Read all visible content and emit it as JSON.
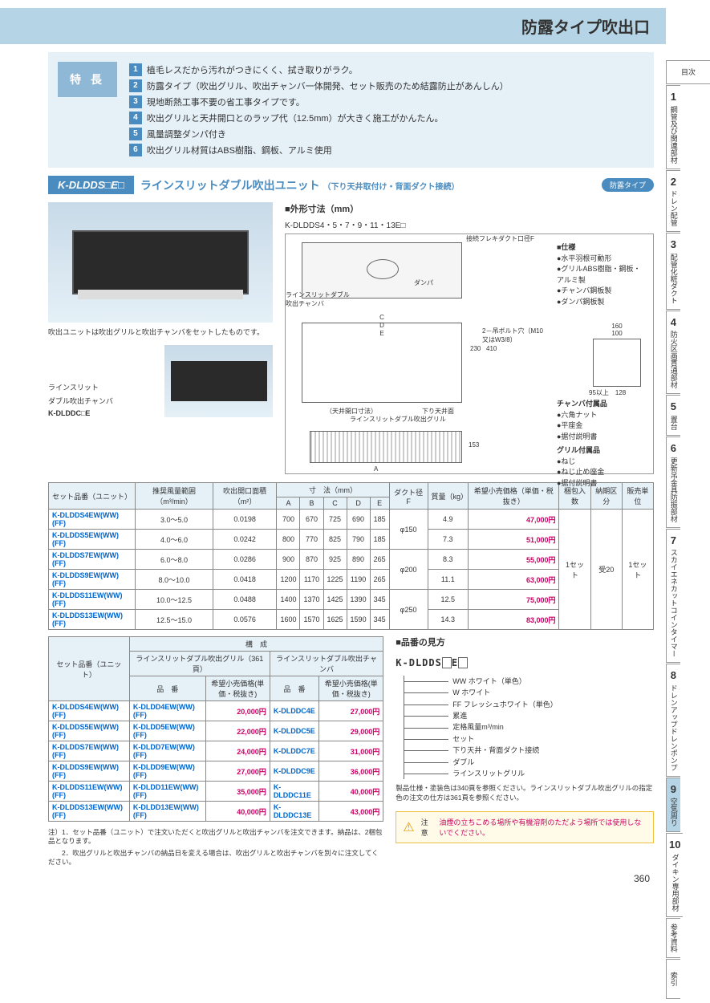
{
  "header_title": "防露タイプ吹出口",
  "page_number": "360",
  "features": {
    "label": "特 長",
    "items": [
      "植毛レスだから汚れがつきにくく、拭き取りがラク。",
      "防露タイプ（吹出グリル、吹出チャンバ一体開発、セット販売のため結露防止があんしん）",
      "現地断熱工事不要の省工事タイプです。",
      "吹出グリルと天井開口とのラップ代（12.5mm）が大きく施工がかんたん。",
      "風量調整ダンパ付き",
      "吹出グリル材質はABS樹脂、鋼板、アルミ使用"
    ]
  },
  "model": {
    "code": "K-DLDDS□E□",
    "title": "ラインスリットダブル吹出ユニット",
    "subtitle": "（下り天井取付け・背面ダクト接続）",
    "badge": "防露タイプ"
  },
  "photo_caption": "吹出ユニットは吹出グリルと吹出チャンバをセットしたものです。",
  "chamber": {
    "label1": "ラインスリット",
    "label2": "ダブル吹出チャンバ",
    "code": "K-DLDDC□E"
  },
  "dimensions": {
    "header": "■外形寸法（mm）",
    "sub": "K-DLDDS4・5・7・9・11・13E□",
    "labels": {
      "duct": "接続フレキダクト口径F",
      "damper": "ダンパ",
      "chamber": "ラインスリットダブル吹出チャンバ",
      "bolt": "2－吊ボルト穴（M10又はW3/8）",
      "ceiling": "（天井開口寸法）",
      "drop": "下り天井面",
      "grill": "ラインスリットダブル吹出グリル"
    }
  },
  "specs": {
    "title": "■仕様",
    "items": [
      "●水平羽根可動形",
      "●グリルABS樹脂・鋼板・アルミ製",
      "●チャンバ鋼板製",
      "●ダンパ鋼板製"
    ],
    "chamber_acc_title": "チャンバ付属品",
    "chamber_acc": [
      "●六角ナット",
      "●平座金",
      "●据付説明書"
    ],
    "grill_acc_title": "グリル付属品",
    "grill_acc": [
      "●ねじ",
      "●ねじ止め座金",
      "●据付説明書"
    ]
  },
  "table1": {
    "headers": {
      "set": "セット品番（ユニット）",
      "flow": "推奨風量範囲（m³/min）",
      "area": "吹出開口面積（m²）",
      "dims": "寸　法（mm）",
      "duct": "ダクト径 F",
      "mass": "質量（kg）",
      "price": "希望小売価格（単価・税抜き）",
      "pack": "梱包入数",
      "delivery": "納期区分",
      "unit": "販売単位"
    },
    "rows": [
      {
        "code": "K-DLDDS4EW(WW)(FF)",
        "flow": "3.0～5.0",
        "area": "0.0198",
        "A": "700",
        "B": "670",
        "C": "725",
        "D": "690",
        "E": "185",
        "duct": "φ150",
        "mass": "4.9",
        "price": "47,000円"
      },
      {
        "code": "K-DLDDS5EW(WW)(FF)",
        "flow": "4.0～6.0",
        "area": "0.0242",
        "A": "800",
        "B": "770",
        "C": "825",
        "D": "790",
        "E": "185",
        "duct": "φ150",
        "mass": "7.3",
        "price": "51,000円"
      },
      {
        "code": "K-DLDDS7EW(WW)(FF)",
        "flow": "6.0～8.0",
        "area": "0.0286",
        "A": "900",
        "B": "870",
        "C": "925",
        "D": "890",
        "E": "265",
        "duct": "φ200",
        "mass": "8.3",
        "price": "55,000円"
      },
      {
        "code": "K-DLDDS9EW(WW)(FF)",
        "flow": "8.0～10.0",
        "area": "0.0418",
        "A": "1200",
        "B": "1170",
        "C": "1225",
        "D": "1190",
        "E": "265",
        "duct": "φ200",
        "mass": "11.1",
        "price": "63,000円"
      },
      {
        "code": "K-DLDDS11EW(WW)(FF)",
        "flow": "10.0～12.5",
        "area": "0.0488",
        "A": "1400",
        "B": "1370",
        "C": "1425",
        "D": "1390",
        "E": "345",
        "duct": "φ250",
        "mass": "12.5",
        "price": "75,000円"
      },
      {
        "code": "K-DLDDS13EW(WW)(FF)",
        "flow": "12.5～15.0",
        "area": "0.0576",
        "A": "1600",
        "B": "1570",
        "C": "1625",
        "D": "1590",
        "E": "345",
        "duct": "φ250",
        "mass": "14.3",
        "price": "83,000円"
      }
    ],
    "pack_val": "1セット",
    "delivery_val": "受20",
    "unit_val": "1セット"
  },
  "table2": {
    "headers": {
      "set": "セット品番（ユニット）",
      "comp": "構　成",
      "grill": "ラインスリットダブル吹出グリル（361頁）",
      "chamber": "ラインスリットダブル吹出チャンバ",
      "code": "品　番",
      "price": "希望小売価格(単価・税抜き)"
    },
    "rows": [
      {
        "set": "K-DLDDS4EW(WW)(FF)",
        "gcode": "K-DLDD4EW(WW)(FF)",
        "gprice": "20,000円",
        "ccode": "K-DLDDC4E",
        "cprice": "27,000円"
      },
      {
        "set": "K-DLDDS5EW(WW)(FF)",
        "gcode": "K-DLDD5EW(WW)(FF)",
        "gprice": "22,000円",
        "ccode": "K-DLDDC5E",
        "cprice": "29,000円"
      },
      {
        "set": "K-DLDDS7EW(WW)(FF)",
        "gcode": "K-DLDD7EW(WW)(FF)",
        "gprice": "24,000円",
        "ccode": "K-DLDDC7E",
        "cprice": "31,000円"
      },
      {
        "set": "K-DLDDS9EW(WW)(FF)",
        "gcode": "K-DLDD9EW(WW)(FF)",
        "gprice": "27,000円",
        "ccode": "K-DLDDC9E",
        "cprice": "36,000円"
      },
      {
        "set": "K-DLDDS11EW(WW)(FF)",
        "gcode": "K-DLDD11EW(WW)(FF)",
        "gprice": "35,000円",
        "ccode": "K-DLDDC11E",
        "cprice": "40,000円"
      },
      {
        "set": "K-DLDDS13EW(WW)(FF)",
        "gcode": "K-DLDD13EW(WW)(FF)",
        "gprice": "40,000円",
        "ccode": "K-DLDDC13E",
        "cprice": "43,000円"
      }
    ]
  },
  "footnotes": [
    "注）1．セット品番（ユニット）で注文いただくと吹出グリルと吹出チャンバを注文できます。納品は、2梱包品となります。",
    "　　2．吹出グリルと吹出チャンバの納品日を変える場合は、吹出グリルと吹出チャンバを別々に注文してください。"
  ],
  "part_number": {
    "title": "■品番の見方",
    "code": "K-DLDDS□E□",
    "items": [
      "WW ホワイト（単色）",
      "W ホワイト",
      "FF フレッシュホワイト（単色）",
      "累進",
      "定格風量m³/min",
      "セット",
      "下り天井・背面ダクト接続",
      "ダブル",
      "ラインスリットグリル"
    ]
  },
  "note_ref": "製品仕様・塗装色は340頁を参照ください。ラインスリットダブル吹出グリルの指定色の注文の仕方は361頁を参照ください。",
  "warning": {
    "label": "注意",
    "text": "油煙の立ちこめる場所や有機溶剤のただよう場所では使用しないでください。"
  },
  "side_tabs": [
    {
      "num": "",
      "label": "目次"
    },
    {
      "num": "1",
      "label": "鋼管及び関連部材"
    },
    {
      "num": "2",
      "label": "ドレン配管"
    },
    {
      "num": "3",
      "label": "配管化粧ダクト"
    },
    {
      "num": "4",
      "label": "防火区画貫通部材"
    },
    {
      "num": "5",
      "label": "置台"
    },
    {
      "num": "6",
      "label": "更新吊金具防振部材"
    },
    {
      "num": "7",
      "label": "スカイエネカットコインタイマー"
    },
    {
      "num": "8",
      "label": "ドレンアップドレンポンプ"
    },
    {
      "num": "9",
      "label": "空気周り",
      "active": true
    },
    {
      "num": "10",
      "label": "ダイキン専用部材"
    },
    {
      "num": "",
      "label": "参考資料"
    },
    {
      "num": "",
      "label": "索引"
    }
  ]
}
